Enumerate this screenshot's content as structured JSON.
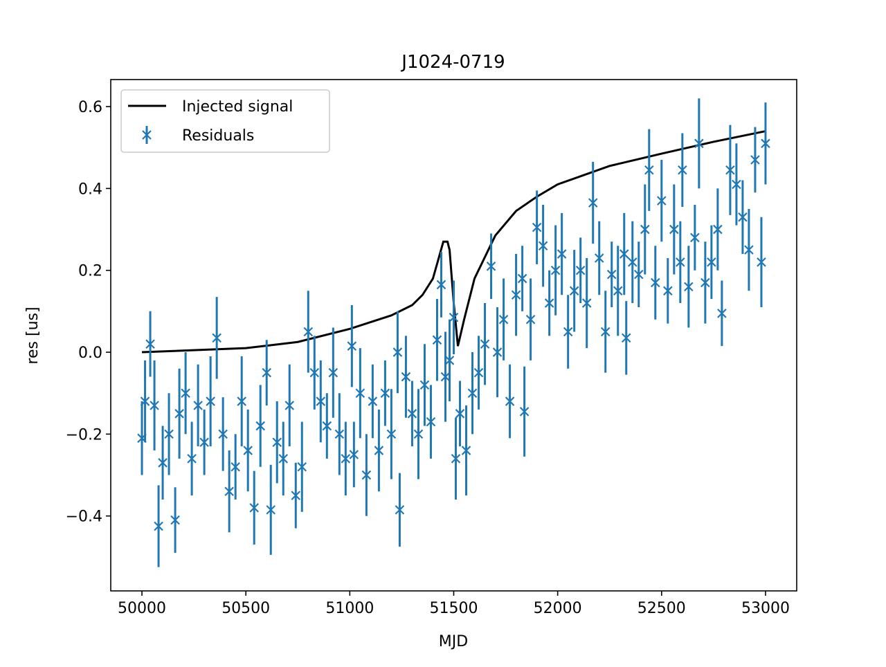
{
  "chart_data": {
    "type": "line",
    "title": "J1024-0719",
    "x_label": "MJD",
    "y_label": "res [us]",
    "xlim": [
      49850,
      53150
    ],
    "ylim": [
      -0.583,
      0.666
    ],
    "xticks": [
      50000,
      50500,
      51000,
      51500,
      52000,
      52500,
      53000
    ],
    "yticks": [
      {
        "value": -0.4,
        "label": "−0.4"
      },
      {
        "value": -0.2,
        "label": "−0.2"
      },
      {
        "value": 0,
        "label": "0.0"
      },
      0.2,
      0.4,
      0.6
    ],
    "legend": "upper left",
    "series": [
      {
        "name": "Injected signal",
        "color": "#000000",
        "x": [
          50000,
          50500,
          50750,
          51000,
          51200,
          51300,
          51350,
          51400,
          51450,
          51470,
          51480,
          51500,
          51520,
          51550,
          51600,
          51700,
          51800,
          51900,
          52000,
          52250,
          52500,
          52750,
          53000
        ],
        "values": [
          0,
          0.01,
          0.025,
          0.057,
          0.09,
          0.115,
          0.14,
          0.18,
          0.27,
          0.27,
          0.25,
          0.12,
          0.015,
          0.08,
          0.18,
          0.285,
          0.345,
          0.38,
          0.41,
          0.455,
          0.485,
          0.514,
          0.54
        ]
      },
      {
        "name": "Residuals",
        "color": "#1f77b4",
        "x": [
          50000,
          50015,
          50040,
          50060,
          50080,
          50100,
          50130,
          50160,
          50180,
          50210,
          50240,
          50270,
          50300,
          50330,
          50360,
          50390,
          50420,
          50450,
          50480,
          50510,
          50540,
          50570,
          50600,
          50620,
          50650,
          50680,
          50710,
          50740,
          50770,
          50800,
          50830,
          50860,
          50890,
          50920,
          50950,
          50980,
          51010,
          51020,
          51050,
          51080,
          51110,
          51140,
          51170,
          51200,
          51230,
          51240,
          51270,
          51300,
          51330,
          51360,
          51390,
          51420,
          51440,
          51460,
          51480,
          51500,
          51510,
          51530,
          51560,
          51590,
          51620,
          51650,
          51680,
          51710,
          51740,
          51770,
          51800,
          51830,
          51840,
          51870,
          51900,
          51930,
          51960,
          51990,
          52020,
          52050,
          52080,
          52110,
          52140,
          52170,
          52200,
          52230,
          52260,
          52290,
          52320,
          52330,
          52360,
          52390,
          52420,
          52440,
          52470,
          52500,
          52530,
          52560,
          52590,
          52600,
          52630,
          52660,
          52680,
          52710,
          52740,
          52770,
          52790,
          52830,
          52860,
          52890,
          52920,
          52950,
          52980,
          53000
        ],
        "values": [
          -0.21,
          -0.12,
          0.02,
          -0.13,
          -0.425,
          -0.27,
          -0.2,
          -0.41,
          -0.15,
          -0.1,
          -0.26,
          -0.13,
          -0.22,
          -0.12,
          0.035,
          -0.2,
          -0.34,
          -0.28,
          -0.12,
          -0.24,
          -0.38,
          -0.18,
          -0.05,
          -0.385,
          -0.22,
          -0.26,
          -0.13,
          -0.35,
          -0.28,
          0.05,
          -0.05,
          -0.12,
          -0.18,
          -0.05,
          -0.2,
          -0.26,
          0.015,
          -0.25,
          -0.1,
          -0.3,
          -0.12,
          -0.24,
          -0.1,
          -0.2,
          0.0,
          -0.385,
          -0.06,
          -0.15,
          -0.2,
          -0.08,
          -0.17,
          0.03,
          0.165,
          -0.06,
          -0.02,
          0.085,
          -0.26,
          -0.15,
          -0.24,
          -0.1,
          -0.05,
          0.02,
          0.21,
          0.0,
          0.08,
          -0.12,
          0.14,
          0.18,
          -0.145,
          0.08,
          0.305,
          0.26,
          0.12,
          0.2,
          0.24,
          0.05,
          0.15,
          0.2,
          0.12,
          0.365,
          0.23,
          0.05,
          0.19,
          0.15,
          0.24,
          0.035,
          0.22,
          0.19,
          0.3,
          0.445,
          0.17,
          0.37,
          0.15,
          0.3,
          0.22,
          0.445,
          0.16,
          0.28,
          0.51,
          0.17,
          0.22,
          0.3,
          0.095,
          0.445,
          0.41,
          0.33,
          0.25,
          0.47,
          0.22,
          0.51
        ],
        "errors": [
          0.09,
          0.1,
          0.08,
          0.11,
          0.1,
          0.09,
          0.1,
          0.08,
          0.11,
          0.1,
          0.09,
          0.1,
          0.08,
          0.11,
          0.1,
          0.09,
          0.1,
          0.08,
          0.11,
          0.1,
          0.09,
          0.1,
          0.08,
          0.11,
          0.1,
          0.09,
          0.1,
          0.08,
          0.11,
          0.1,
          0.09,
          0.1,
          0.08,
          0.11,
          0.1,
          0.09,
          0.1,
          0.08,
          0.11,
          0.1,
          0.09,
          0.1,
          0.08,
          0.11,
          0.1,
          0.09,
          0.1,
          0.08,
          0.11,
          0.1,
          0.09,
          0.1,
          0.08,
          0.11,
          0.1,
          0.09,
          0.1,
          0.08,
          0.11,
          0.1,
          0.09,
          0.1,
          0.08,
          0.11,
          0.1,
          0.09,
          0.1,
          0.08,
          0.11,
          0.1,
          0.09,
          0.1,
          0.08,
          0.11,
          0.1,
          0.09,
          0.1,
          0.08,
          0.11,
          0.1,
          0.09,
          0.1,
          0.08,
          0.11,
          0.1,
          0.09,
          0.1,
          0.08,
          0.11,
          0.1,
          0.09,
          0.1,
          0.08,
          0.11,
          0.1,
          0.09,
          0.1,
          0.08,
          0.11,
          0.1,
          0.09,
          0.1,
          0.08,
          0.11,
          0.1,
          0.09,
          0.1,
          0.08,
          0.11,
          0.1
        ]
      }
    ]
  }
}
